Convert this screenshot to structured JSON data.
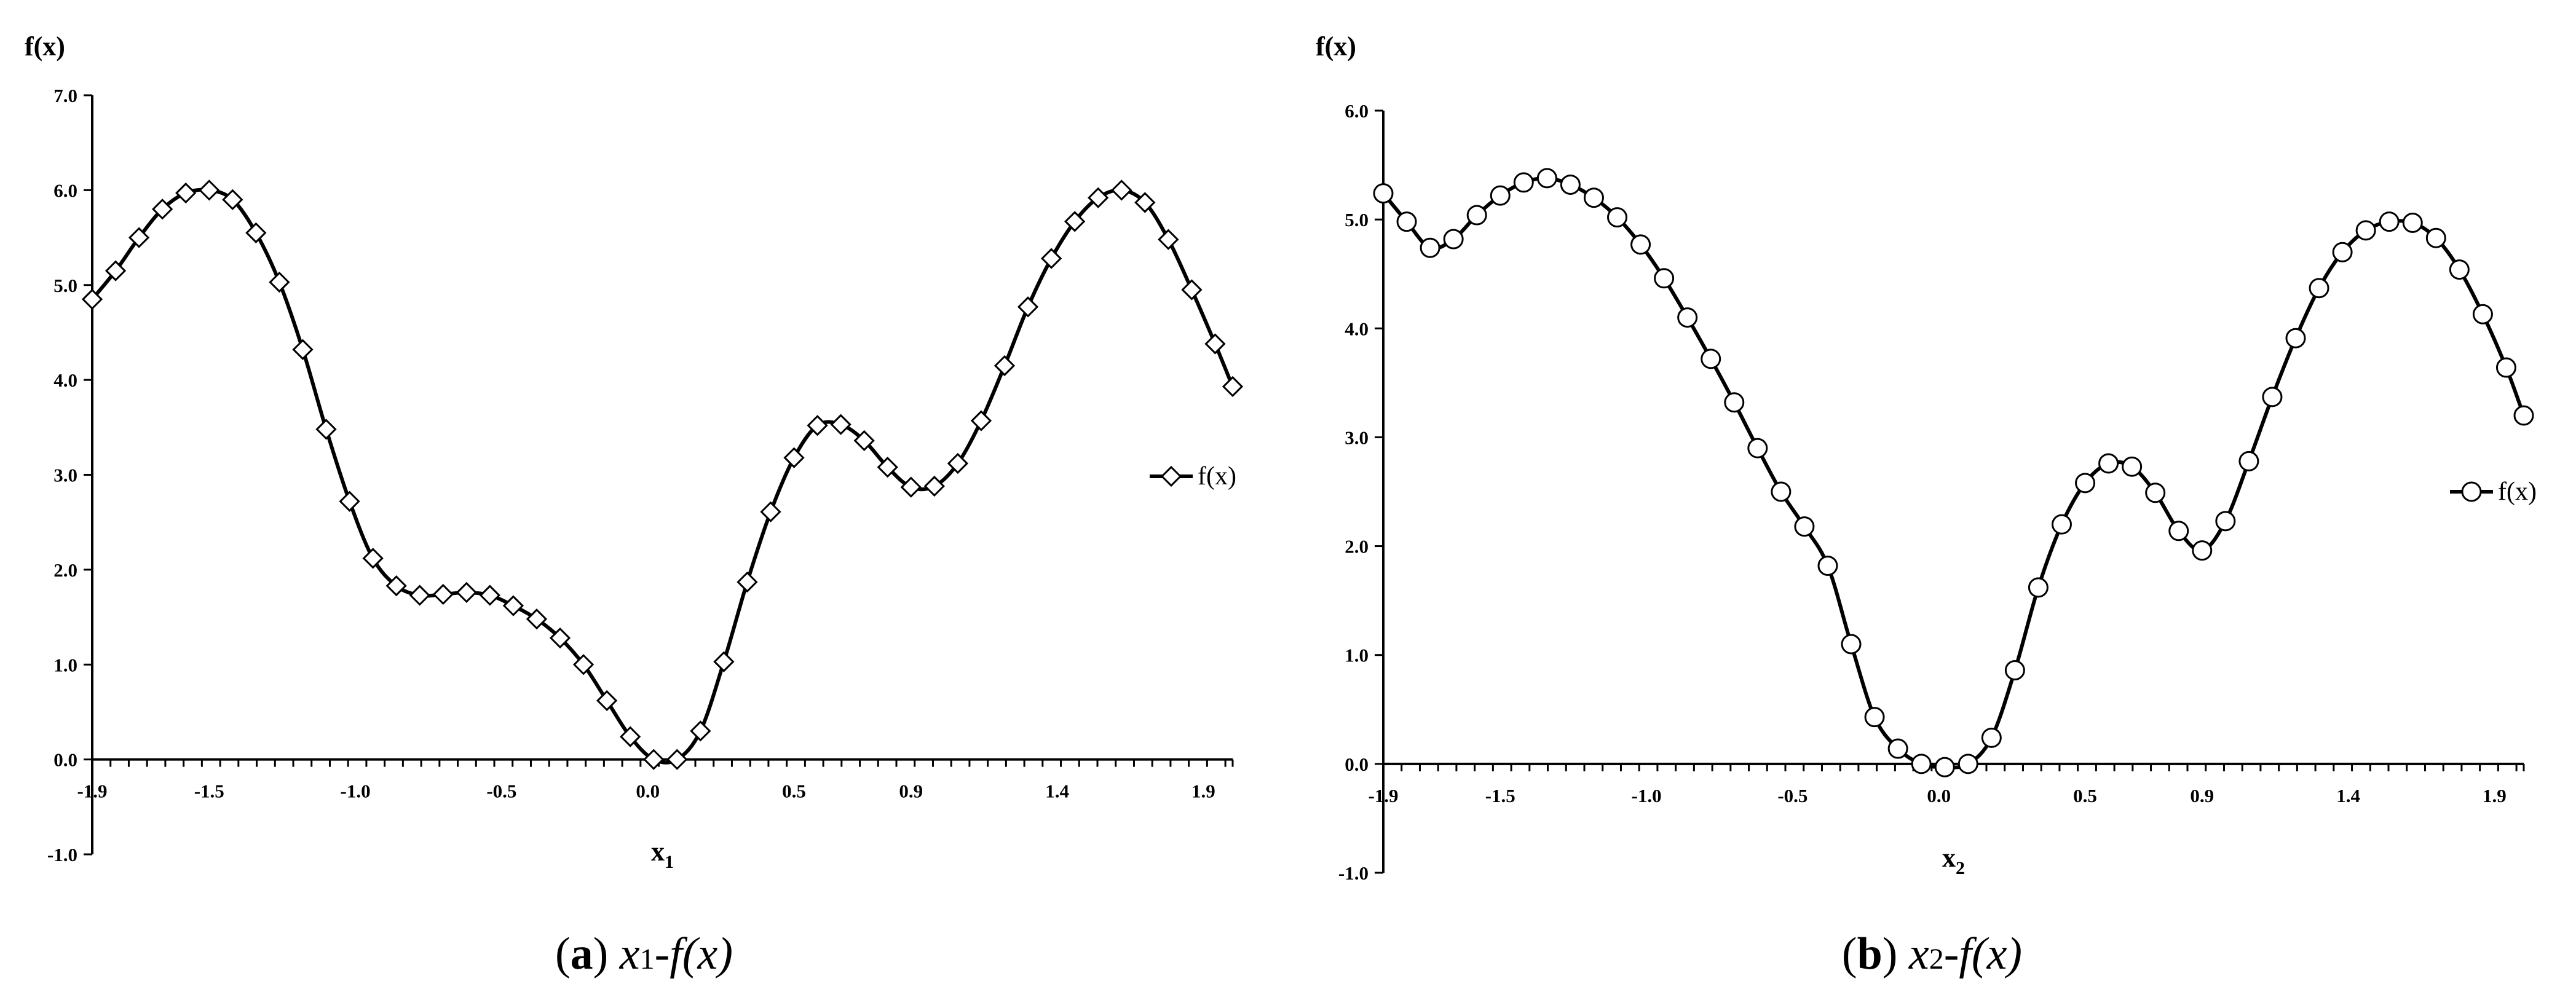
{
  "charts": [
    {
      "id": "a",
      "caption": {
        "open": "(",
        "letter": "a",
        "close": ")",
        "var": "x",
        "sub": "1",
        "rest": "-f(x)"
      },
      "chart_data": {
        "type": "line",
        "ylabel": "f(x)",
        "xlabel": {
          "main": "x",
          "sub": "1"
        },
        "xlim": [
          -1.9,
          2.0
        ],
        "ylim": [
          -1.0,
          7.0
        ],
        "yticks": [
          "-1.0",
          "0.0",
          "1.0",
          "2.0",
          "3.0",
          "4.0",
          "5.0",
          "6.0",
          "7.0"
        ],
        "xtick_labels": [
          {
            "x": -1.9,
            "label": "-1.9"
          },
          {
            "x": -1.5,
            "label": "-1.5"
          },
          {
            "x": -1.0,
            "label": "-1.0"
          },
          {
            "x": -0.5,
            "label": "-0.5"
          },
          {
            "x": 0.0,
            "label": "0.0"
          },
          {
            "x": 0.5,
            "label": "0.5"
          },
          {
            "x": 0.9,
            "label": "0.9"
          },
          {
            "x": 1.4,
            "label": "1.4"
          },
          {
            "x": 1.9,
            "label": "1.9"
          }
        ],
        "minor_tick_step": 0.0625,
        "marker": "diamond",
        "series": [
          {
            "name": "f(x)",
            "x": [
              -1.9,
              -1.82,
              -1.74,
              -1.66,
              -1.58,
              -1.5,
              -1.42,
              -1.34,
              -1.26,
              -1.18,
              -1.1,
              -1.02,
              -0.94,
              -0.86,
              -0.78,
              -0.7,
              -0.62,
              -0.54,
              -0.46,
              -0.38,
              -0.3,
              -0.22,
              -0.14,
              -0.06,
              0.02,
              0.1,
              0.18,
              0.26,
              0.34,
              0.42,
              0.5,
              0.58,
              0.66,
              0.74,
              0.82,
              0.9,
              0.98,
              1.06,
              1.14,
              1.22,
              1.3,
              1.38,
              1.46,
              1.54,
              1.62,
              1.7,
              1.78,
              1.86,
              1.94,
              2.0
            ],
            "values": [
              4.85,
              5.15,
              5.5,
              5.8,
              5.97,
              6.0,
              5.9,
              5.55,
              5.03,
              4.32,
              3.48,
              2.72,
              2.12,
              1.83,
              1.73,
              1.74,
              1.76,
              1.73,
              1.62,
              1.48,
              1.28,
              1.0,
              0.62,
              0.24,
              0.0,
              0.0,
              0.3,
              1.03,
              1.87,
              2.61,
              3.18,
              3.52,
              3.53,
              3.36,
              3.08,
              2.87,
              2.88,
              3.12,
              3.57,
              4.15,
              4.77,
              5.28,
              5.67,
              5.92,
              6.0,
              5.87,
              5.48,
              4.95,
              4.38,
              3.93
            ]
          }
        ],
        "legend": "right"
      }
    },
    {
      "id": "b",
      "caption": {
        "open": "(",
        "letter": "b",
        "close": ")",
        "var": "x",
        "sub": "2",
        "rest": "-f(x)"
      },
      "chart_data": {
        "type": "line",
        "ylabel": "f(x)",
        "xlabel": {
          "main": "x",
          "sub": "2"
        },
        "xlim": [
          -1.9,
          2.0
        ],
        "ylim": [
          -1.0,
          6.0
        ],
        "yticks": [
          "-1.0",
          "0.0",
          "1.0",
          "2.0",
          "3.0",
          "4.0",
          "5.0",
          "6.0"
        ],
        "xtick_labels": [
          {
            "x": -1.9,
            "label": "-1.9"
          },
          {
            "x": -1.5,
            "label": "-1.5"
          },
          {
            "x": -1.0,
            "label": "-1.0"
          },
          {
            "x": -0.5,
            "label": "-0.5"
          },
          {
            "x": 0.0,
            "label": "0.0"
          },
          {
            "x": 0.5,
            "label": "0.5"
          },
          {
            "x": 0.9,
            "label": "0.9"
          },
          {
            "x": 1.4,
            "label": "1.4"
          },
          {
            "x": 1.9,
            "label": "1.9"
          }
        ],
        "minor_tick_step": 0.0625,
        "marker": "circle",
        "series": [
          {
            "name": "f(x)",
            "x": [
              -1.9,
              -1.82,
              -1.74,
              -1.66,
              -1.58,
              -1.5,
              -1.42,
              -1.34,
              -1.26,
              -1.18,
              -1.1,
              -1.02,
              -0.94,
              -0.86,
              -0.78,
              -0.7,
              -0.62,
              -0.54,
              -0.46,
              -0.38,
              -0.3,
              -0.22,
              -0.14,
              -0.06,
              0.02,
              0.1,
              0.18,
              0.26,
              0.34,
              0.42,
              0.5,
              0.58,
              0.66,
              0.74,
              0.82,
              0.9,
              0.98,
              1.06,
              1.14,
              1.22,
              1.3,
              1.38,
              1.46,
              1.54,
              1.62,
              1.7,
              1.78,
              1.86,
              1.94,
              2.0
            ],
            "values": [
              5.24,
              4.98,
              4.74,
              4.82,
              5.04,
              5.22,
              5.34,
              5.38,
              5.32,
              5.2,
              5.02,
              4.77,
              4.46,
              4.1,
              3.72,
              3.32,
              2.9,
              2.5,
              2.18,
              1.82,
              1.1,
              0.43,
              0.14,
              0.0,
              -0.03,
              0.0,
              0.24,
              0.86,
              1.62,
              2.2,
              2.58,
              2.76,
              2.73,
              2.49,
              2.14,
              1.96,
              2.23,
              2.78,
              3.37,
              3.91,
              4.37,
              4.7,
              4.9,
              4.98,
              4.97,
              4.83,
              4.54,
              4.13,
              3.64,
              3.2
            ]
          }
        ],
        "legend": "right"
      }
    }
  ]
}
